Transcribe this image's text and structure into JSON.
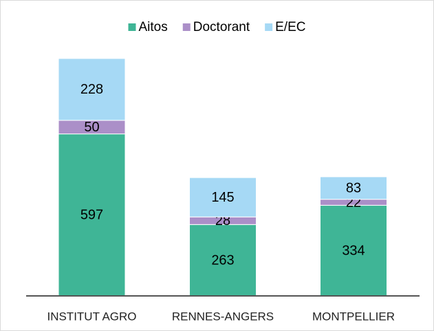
{
  "chart_data": {
    "type": "stacked_bar",
    "categories": [
      "INSTITUT AGRO",
      "RENNES-ANGERS",
      "MONTPELLIER"
    ],
    "series": [
      {
        "name": "Aitos",
        "color": "#3fb596",
        "values": [
          597,
          263,
          334
        ]
      },
      {
        "name": "Doctorant",
        "color": "#ab8fc8",
        "values": [
          50,
          28,
          22
        ]
      },
      {
        "name": "E/EC",
        "color": "#a6d9f5",
        "values": [
          228,
          145,
          83
        ]
      }
    ],
    "legend": "top"
  }
}
